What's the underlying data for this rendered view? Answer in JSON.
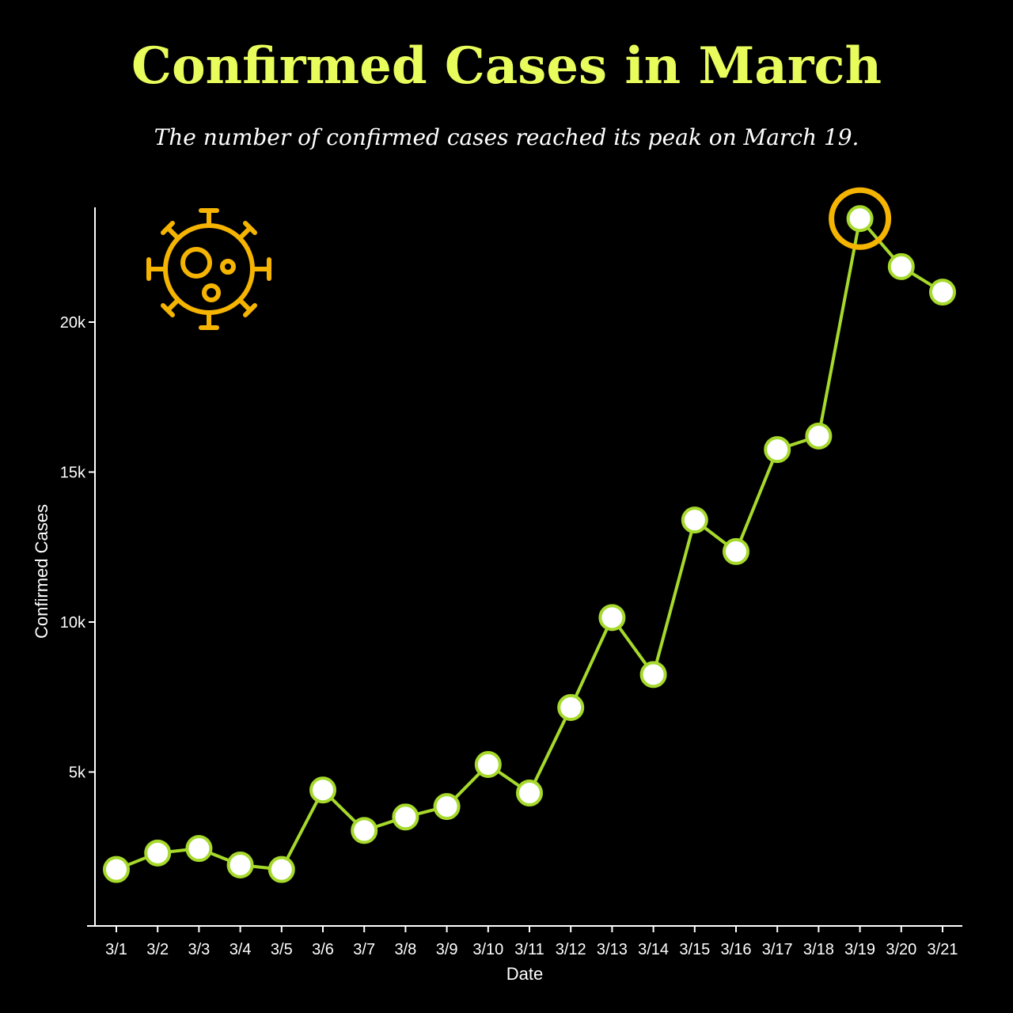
{
  "title": "Confirmed Cases in March",
  "subtitle": "The number of confirmed cases reached its peak on March 19.",
  "colors": {
    "background": "#000000",
    "title": "#e8fc5c",
    "line": "#a6d92b",
    "point_fill": "#ffffff",
    "highlight": "#f5b400",
    "icon": "#f5b400",
    "axis": "#ffffff"
  },
  "icon": "virus-icon",
  "chart_data": {
    "type": "line",
    "title": "Confirmed Cases in March",
    "subtitle": "The number of confirmed cases reached its peak on March 19.",
    "xlabel": "Date",
    "ylabel": "Confirmed Cases",
    "categories": [
      "3/1",
      "3/2",
      "3/3",
      "3/4",
      "3/5",
      "3/6",
      "3/7",
      "3/8",
      "3/9",
      "3/10",
      "3/11",
      "3/12",
      "3/13",
      "3/14",
      "3/15",
      "3/16",
      "3/17",
      "3/18",
      "3/19",
      "3/20",
      "3/21"
    ],
    "series": [
      {
        "values": [
          1750,
          2300,
          2450,
          1900,
          1750,
          4400,
          3050,
          3500,
          3850,
          5250,
          4300,
          7150,
          10150,
          8250,
          13400,
          12350,
          15750,
          16200,
          23450,
          21850,
          21000
        ]
      }
    ],
    "yticks": [
      5000,
      10000,
      15000,
      20000
    ],
    "ytick_labels": [
      "5k",
      "10k",
      "15k",
      "20k"
    ],
    "ylim": [
      0,
      24000
    ],
    "highlight": {
      "category": "3/19",
      "value": 23450
    },
    "grid": false,
    "legend": "none"
  }
}
